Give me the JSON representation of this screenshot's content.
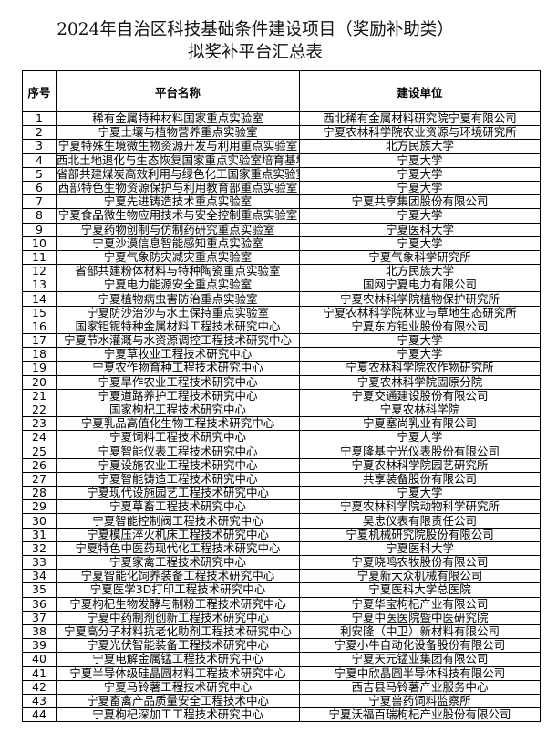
{
  "title": {
    "line1": "2024年自治区科技基础条件建设项目（奖励补助类）",
    "line2": "拟奖补平台汇总表"
  },
  "table": {
    "headers": [
      "序号",
      "平台名称",
      "建设单位"
    ],
    "rows": [
      [
        "1",
        "稀有金属特种材料国家重点实验室",
        "西北稀有金属材料研究院宁夏有限公司"
      ],
      [
        "2",
        "宁夏土壤与植物营养重点实验室",
        "宁夏农林科学院农业资源与环境研究所"
      ],
      [
        "3",
        "宁夏特殊生境微生物资源开发与利用重点实验室",
        "北方民族大学"
      ],
      [
        "4",
        "西北土地退化与生态恢复国家重点实验室培育基地",
        "宁夏大学"
      ],
      [
        "5",
        "省部共建煤炭高效利用与绿色化工国家重点实验室",
        "宁夏大学"
      ],
      [
        "6",
        "西部特色生物资源保护与利用教育部重点实验室",
        "宁夏大学"
      ],
      [
        "7",
        "宁夏先进铸造技术重点实验室",
        "宁夏共享集团股份有限公司"
      ],
      [
        "8",
        "宁夏食品微生物应用技术与安全控制重点实验室",
        "宁夏大学"
      ],
      [
        "9",
        "宁夏药物创制与仿制药研究重点实验室",
        "宁夏医科大学"
      ],
      [
        "10",
        "宁夏沙漠信息智能感知重点实验室",
        "宁夏大学"
      ],
      [
        "11",
        "宁夏气象防灾减灾重点实验室",
        "宁夏气象科学研究所"
      ],
      [
        "12",
        "省部共建粉体材料与特种陶瓷重点实验室",
        "北方民族大学"
      ],
      [
        "13",
        "宁夏电力能源安全重点实验室",
        "国网宁夏电力有限公司"
      ],
      [
        "14",
        "宁夏植物病虫害防治重点实验室",
        "宁夏农林科学院植物保护研究所"
      ],
      [
        "15",
        "宁夏防沙治沙与水土保持重点实验室",
        "宁夏农林科学院林业与草地生态研究所"
      ],
      [
        "16",
        "国家钽铌特种金属材料工程技术研究中心",
        "宁夏东方钽业股份有限公司"
      ],
      [
        "17",
        "宁夏节水灌溉与水资源调控工程技术研究中心",
        "宁夏大学"
      ],
      [
        "18",
        "宁夏草牧业工程技术研究中心",
        "宁夏大学"
      ],
      [
        "19",
        "宁夏农作物育种工程技术研究中心",
        "宁夏农林科学院农作物研究所"
      ],
      [
        "20",
        "宁夏旱作农业工程技术研究中心",
        "宁夏农林科学院固原分院"
      ],
      [
        "21",
        "宁夏道路养护工程技术研究中心",
        "宁夏交通建设股份有限公司"
      ],
      [
        "22",
        "国家枸杞工程技术研究中心",
        "宁夏农林科学院"
      ],
      [
        "23",
        "宁夏乳品高值化生物工程技术研究中心",
        "宁夏塞尚乳业有限公司"
      ],
      [
        "24",
        "宁夏饲料工程技术研究中心",
        "宁夏大学"
      ],
      [
        "25",
        "宁夏智能仪表工程技术研究中心",
        "宁夏隆基宁光仪表股份有限公司"
      ],
      [
        "26",
        "宁夏设施农业工程技术研究中心",
        "宁夏农林科学院园艺研究所"
      ],
      [
        "27",
        "宁夏智能铸造工程技术研究中心",
        "共享装备股份有限公司"
      ],
      [
        "28",
        "宁夏现代设施园艺工程技术研究中心",
        "宁夏大学"
      ],
      [
        "29",
        "宁夏草畜工程技术研究中心",
        "宁夏农林科学院动物科学研究所"
      ],
      [
        "30",
        "宁夏智能控制阀工程技术研究中心",
        "吴忠仪表有限责任公司"
      ],
      [
        "31",
        "宁夏模压淬火机床工程技术研究中心",
        "宁夏机械研究院股份有限公司"
      ],
      [
        "32",
        "宁夏特色中医药现代化工程技术研究中心",
        "宁夏医科大学"
      ],
      [
        "33",
        "宁夏家禽工程技术研究中心",
        "宁夏晓鸣农牧股份有限公司"
      ],
      [
        "34",
        "宁夏智能化饲养装备工程技术研究中心",
        "宁夏新大众机械有限公司"
      ],
      [
        "35",
        "宁夏医学3D打印工程技术研究中心",
        "宁夏医科大学总医院"
      ],
      [
        "36",
        "宁夏枸杞生物发酵与制粉工程技术研究中心",
        "宁夏华宝枸杞产业有限公司"
      ],
      [
        "37",
        "宁夏中药制剂创新工程技术研究中心",
        "宁夏中医医院暨中医研究院"
      ],
      [
        "38",
        "宁夏高分子材料抗老化助剂工程技术研究中心",
        "利安隆（中卫）新材料有限公司"
      ],
      [
        "39",
        "宁夏光伏智能装备工程技术研究中心",
        "宁夏小牛自动化设备股份有限公司"
      ],
      [
        "40",
        "宁夏电解金属锰工程技术研究中心",
        "宁夏天元锰业集团有限公司"
      ],
      [
        "41",
        "宁夏半导体级硅晶圆材料工程技术研究中心",
        "宁夏中欣晶圆半导体科技有限公司"
      ],
      [
        "42",
        "宁夏马铃薯工程技术研究中心",
        "西吉县马铃薯产业服务中心"
      ],
      [
        "43",
        "宁夏畜禽产品质量安全工程技术中心",
        "宁夏兽药饲料监察所"
      ],
      [
        "44",
        "宁夏枸杞深加工工程技术研究中心",
        "宁夏沃福百瑞枸杞产业股份有限公司"
      ]
    ]
  }
}
